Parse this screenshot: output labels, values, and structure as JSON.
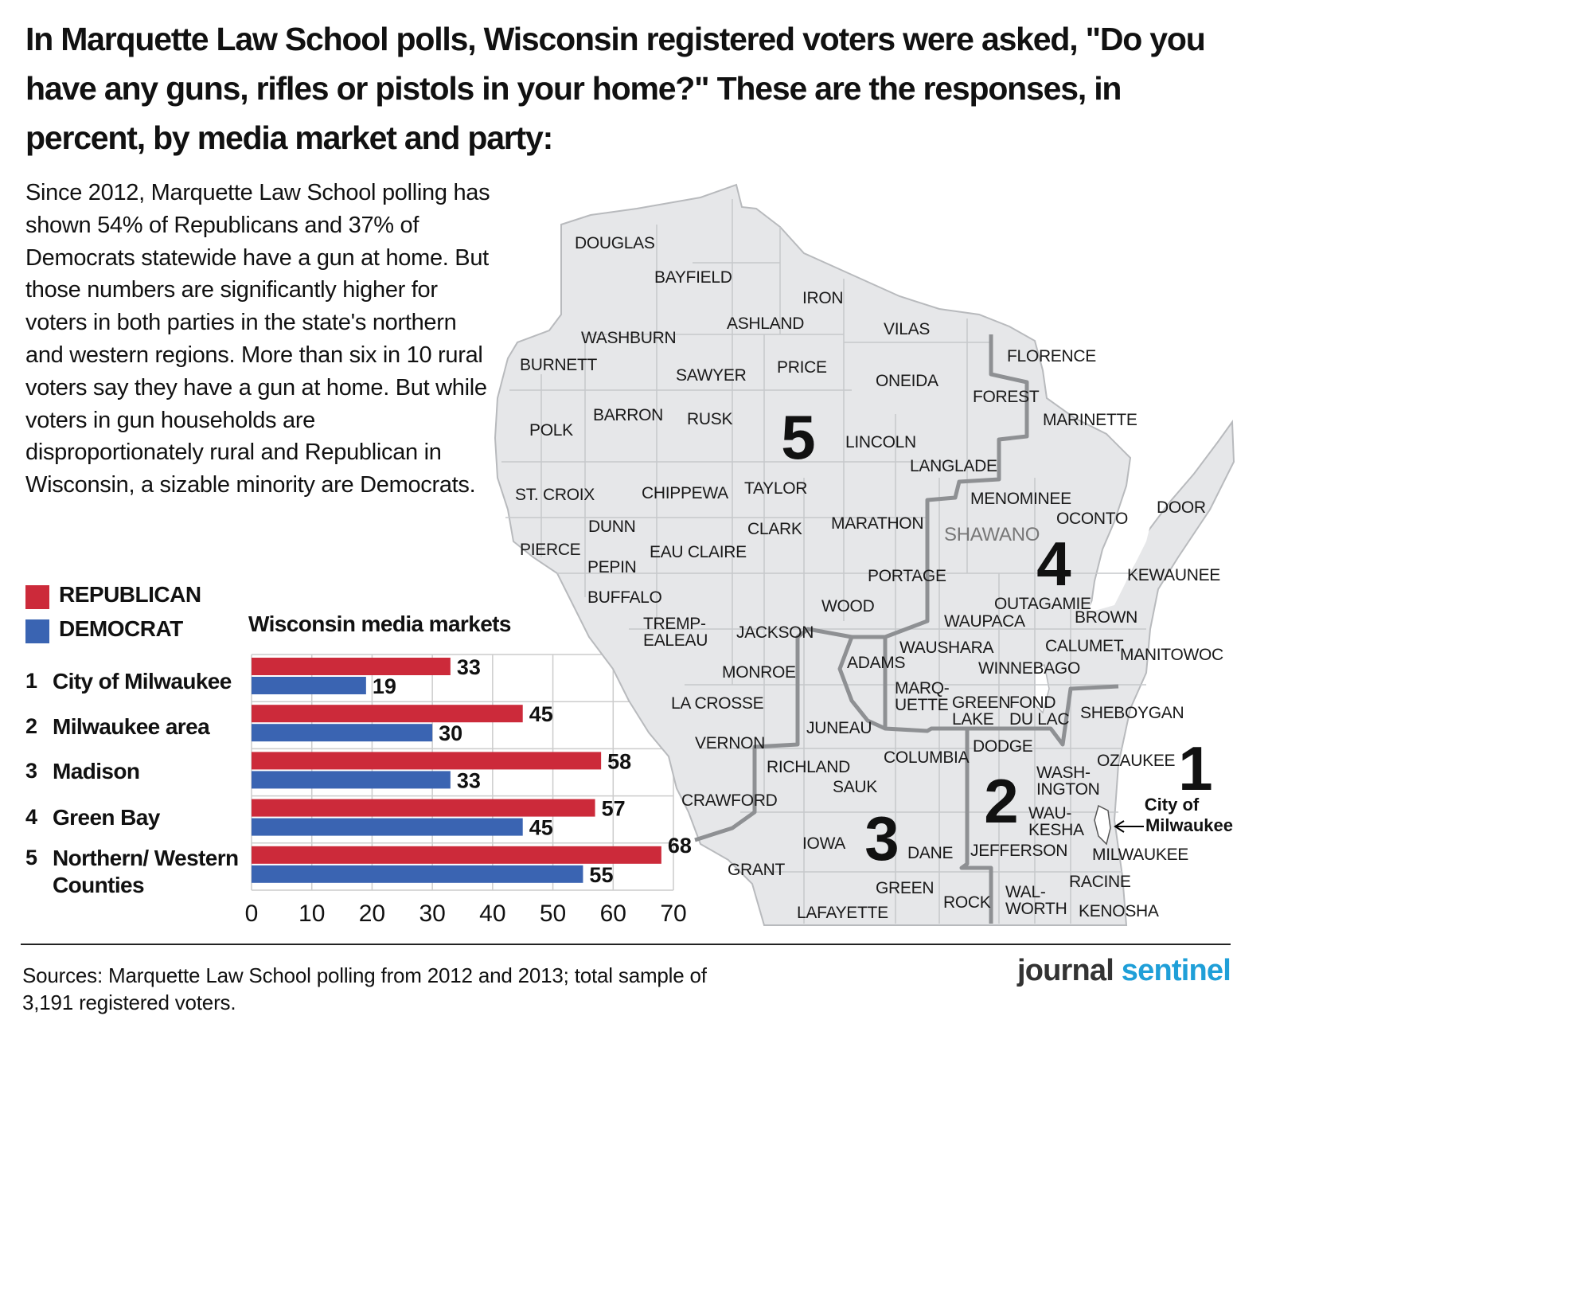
{
  "headline": "In Marquette Law School polls, Wisconsin registered voters were asked, \"Do you have any guns, rifles or pistols in your home?\" These are the responses, in percent, by media market and party:",
  "intro": "Since 2012, Marquette Law School polling has shown 54% of Republicans and 37% of Democrats statewide have a gun at home.  But those numbers are significantly higher for voters in both parties in the state's northern and western regions.  More than six in 10 rural voters say they have a gun at home. But while voters in gun households are disproportionately rural and Republican in Wisconsin, a sizable minority are Democrats.",
  "colors": {
    "republican": "#cc2a3a",
    "democrat": "#3a64b2",
    "map_fill": "#e6e7e9",
    "county_line": "#b8babd",
    "market_line": "#8e9093",
    "grid": "#cccccc",
    "brand_blue": "#1f9fd8"
  },
  "chart_data": {
    "type": "bar",
    "orientation": "horizontal",
    "title": "Wisconsin media markets",
    "category_numbers": [
      "1",
      "2",
      "3",
      "4",
      "5"
    ],
    "categories": [
      "City of Milwaukee",
      "Milwaukee area",
      "Madison",
      "Green Bay",
      "Northern/ Western Counties"
    ],
    "series": [
      {
        "name": "REPUBLICAN",
        "color": "#cc2a3a",
        "values": [
          33,
          45,
          58,
          57,
          68
        ]
      },
      {
        "name": "DEMOCRAT",
        "color": "#3a64b2",
        "values": [
          19,
          30,
          33,
          45,
          55
        ]
      }
    ],
    "xlim": [
      0,
      70
    ],
    "xticks": [
      0,
      10,
      20,
      30,
      40,
      50,
      60,
      70
    ],
    "data_labels": true,
    "legend": "top-left",
    "grid": true
  },
  "map": {
    "markets": [
      {
        "number": "5"
      },
      {
        "number": "4"
      },
      {
        "number": "3"
      },
      {
        "number": "2"
      },
      {
        "number": "1",
        "label": "City of Milwaukee"
      }
    ],
    "counties": [
      "DOUGLAS",
      "BAYFIELD",
      "IRON",
      "ASHLAND",
      "VILAS",
      "WASHBURN",
      "BURNETT",
      "SAWYER",
      "PRICE",
      "FLORENCE",
      "ONEIDA",
      "FOREST",
      "POLK",
      "BARRON",
      "RUSK",
      "MARINETTE",
      "LINCOLN",
      "LANGLADE",
      "ST. CROIX",
      "CHIPPEWA",
      "TAYLOR",
      "MENOMINEE",
      "DOOR",
      "DUNN",
      "CLARK",
      "MARATHON",
      "OCONTO",
      "SHAWANO",
      "PIERCE",
      "EAU CLAIRE",
      "PEPIN",
      "PORTAGE",
      "KEWAUNEE",
      "BUFFALO",
      "WOOD",
      "OUTAGAMIE",
      "TREMP-\nEALEAU",
      "JACKSON",
      "WAUPACA",
      "BROWN",
      "WAUSHARA",
      "CALUMET",
      "MANITOWOC",
      "ADAMS",
      "WINNEBAGO",
      "MONROE",
      "MARQ-\nUETTE",
      "GREEN\nLAKE",
      "FOND\nDU LAC",
      "SHEBOYGAN",
      "LA CROSSE",
      "JUNEAU",
      "VERNON",
      "DODGE",
      "COLUMBIA",
      "RICHLAND",
      "WASH-\nINGTON",
      "OZAUKEE",
      "SAUK",
      "CRAWFORD",
      "WAU-\nKESHA",
      "IOWA",
      "DANE",
      "JEFFERSON",
      "MILWAUKEE",
      "GRANT",
      "GREEN",
      "ROCK",
      "WAL-\nWORTH",
      "RACINE",
      "LAFAYETTE",
      "KENOSHA"
    ]
  },
  "sources": "Sources: Marquette Law School polling from 2012 and 2013; total sample of 3,191 registered voters.",
  "brand": {
    "part1": "journal",
    "part2": "sentinel"
  }
}
